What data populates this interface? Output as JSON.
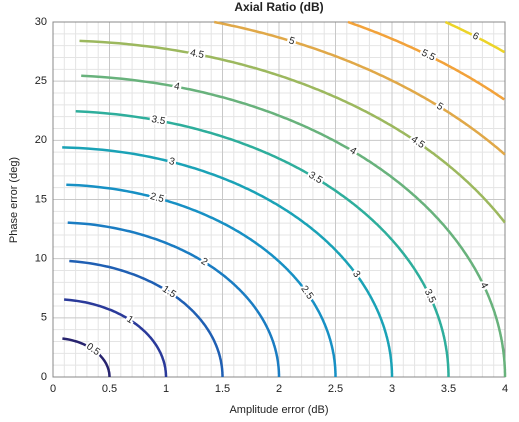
{
  "chart_data": {
    "type": "contour",
    "title": "Axial Ratio (dB)",
    "x_label": "Amplitude error (dB)",
    "y_label": "Phase error (deg)",
    "levels": [
      0.5,
      1,
      1.5,
      2,
      2.5,
      3,
      3.5,
      4,
      4.5,
      5,
      5.5,
      6
    ],
    "colors": [
      "#27236e",
      "#2a3a9a",
      "#1f5fb3",
      "#1a7cc2",
      "#1790c4",
      "#1aa2b6",
      "#2eae9c",
      "#68b27c",
      "#9cb85e",
      "#e0a848",
      "#f2a23a",
      "#ecd428"
    ],
    "xlim": [
      0,
      4
    ],
    "xticks": [
      0,
      0.5,
      1,
      1.5,
      2,
      2.5,
      3,
      3.5,
      4
    ],
    "ylim": [
      0,
      30
    ],
    "yticks": [
      0,
      5,
      10,
      15,
      20,
      25,
      30
    ],
    "grid": true
  }
}
